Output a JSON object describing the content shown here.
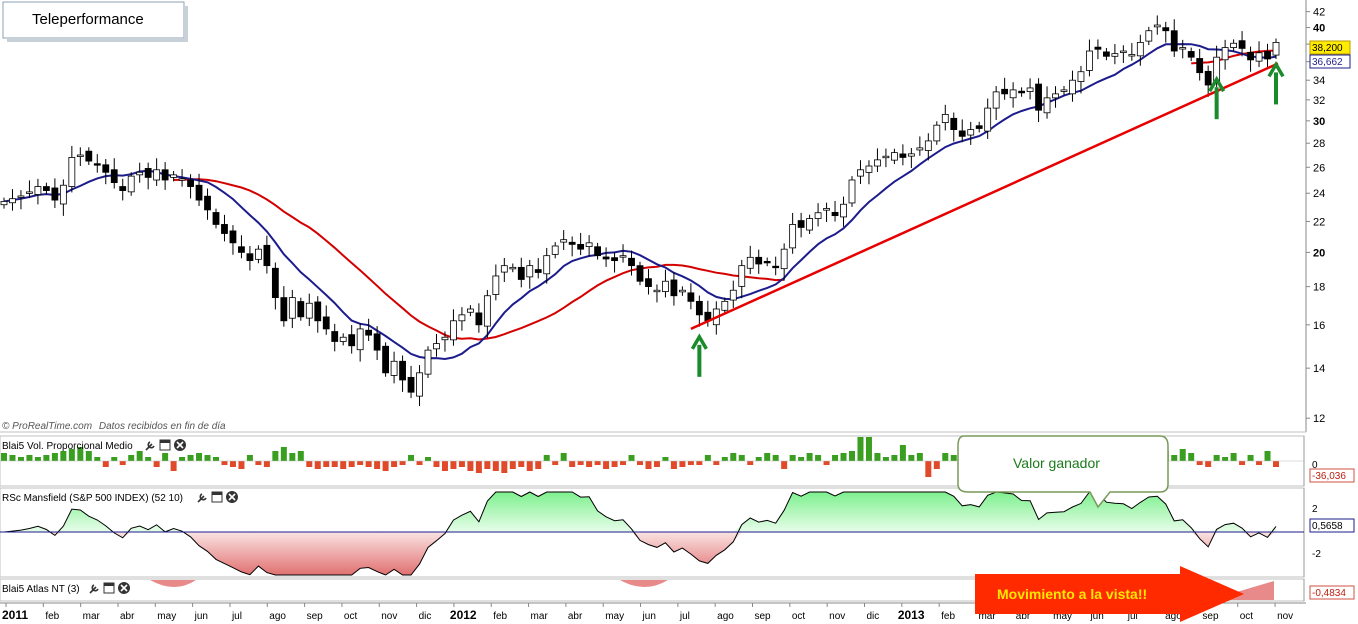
{
  "chart_data": {
    "type": "candlestick",
    "title": "Teleperformance",
    "source_label": "© ProRealTime.com",
    "source_note": "Datos recibidos en fin de día",
    "price_axis": {
      "ylim": [
        11.5,
        43
      ],
      "ticks": [
        12,
        14,
        16,
        18,
        20,
        22,
        24,
        26,
        28,
        30,
        32,
        34,
        36,
        38,
        40,
        42
      ],
      "scale": "log"
    },
    "last_price": "38,200",
    "ma_value": "36,662",
    "x_axis": {
      "months": [
        "2011",
        "feb",
        "mar",
        "abr",
        "may",
        "jun",
        "jul",
        "ago",
        "sep",
        "oct",
        "nov",
        "dic",
        "2012",
        "feb",
        "mar",
        "abr",
        "may",
        "jun",
        "jul",
        "ago",
        "sep",
        "oct",
        "nov",
        "dic",
        "2013",
        "feb",
        "mar",
        "abr",
        "may",
        "jun",
        "jul",
        "ago",
        "sep",
        "oct",
        "nov"
      ],
      "bold_labels": [
        "2011",
        "2012",
        "2013"
      ]
    },
    "weekly_close": [
      23.4,
      23.6,
      23.8,
      24.1,
      24.5,
      24.2,
      23.5,
      24.6,
      26.8,
      27.0,
      26.5,
      26.2,
      25.6,
      24.8,
      24.2,
      25.3,
      25.6,
      25.2,
      25.8,
      25.0,
      25.4,
      25.1,
      24.5,
      23.5,
      22.8,
      21.8,
      21.2,
      20.6,
      20.0,
      19.5,
      20.2,
      19.2,
      17.4,
      16.2,
      17.4,
      16.4,
      17.1,
      16.2,
      15.8,
      15.2,
      15.4,
      15.0,
      15.8,
      15.5,
      14.8,
      13.8,
      14.3,
      13.5,
      13.0,
      13.8,
      14.8,
      15.1,
      15.4,
      16.2,
      16.5,
      16.8,
      16.0,
      17.5,
      18.6,
      19.2,
      19.1,
      18.4,
      19.2,
      18.8,
      19.8,
      20.4,
      20.8,
      20.5,
      20.2,
      20.6,
      19.8,
      19.6,
      19.5,
      19.8,
      19.2,
      18.3,
      18.0,
      17.8,
      18.3,
      17.5,
      17.8,
      17.2,
      16.5,
      16.2,
      16.8,
      17.2,
      17.8,
      19.2,
      19.7,
      19.3,
      19.4,
      19.1,
      20.2,
      21.8,
      21.6,
      22.2,
      22.6,
      22.9,
      22.4,
      23.2,
      25.0,
      25.8,
      26.1,
      26.6,
      26.9,
      27.2,
      26.8,
      27.1,
      27.6,
      28.2,
      29.6,
      30.6,
      29.2,
      28.6,
      29.2,
      29.3,
      31.2,
      32.8,
      32.6,
      33.0,
      32.7,
      33.2,
      31.0,
      32.2,
      32.6,
      33.0,
      34.0,
      34.9,
      37.2,
      37.4,
      36.6,
      36.9,
      37.2,
      36.8,
      38.2,
      39.6,
      40.3,
      39.6,
      37.2,
      37.6,
      36.5,
      34.8,
      33.5,
      36.5,
      37.6,
      38.1,
      37.5,
      36.2,
      37.0,
      36.3,
      38.2
    ],
    "moving_average_short": {
      "name": "MA",
      "color": "#1c1c8c",
      "last": 36.662
    },
    "moving_average_long": {
      "name": "MA long",
      "color": "#d40000"
    },
    "trendline": {
      "from": [
        "2012-07",
        15.8
      ],
      "to": [
        "2013-10",
        35.8
      ],
      "color": "#e80000"
    },
    "arrows": [
      {
        "week": 82,
        "color": "#1a8a2a"
      },
      {
        "week": 143,
        "color": "#1a8a2a"
      },
      {
        "week": 150,
        "color": "#1a8a2a"
      }
    ],
    "panels": [
      {
        "name": "Blai5 Vol. Proporcional Medio",
        "value": "-36,036",
        "tick": "0",
        "bars": [
          4,
          3,
          2,
          3,
          2,
          3,
          4,
          5,
          6,
          7,
          5,
          2,
          -3,
          2,
          -2,
          3,
          5,
          2,
          -3,
          4,
          -5,
          2,
          3,
          4,
          3,
          2,
          -2,
          -3,
          -4,
          3,
          -2,
          -3,
          5,
          7,
          4,
          5,
          -3,
          -4,
          -3,
          -3,
          -4,
          -3,
          -2,
          -3,
          -4,
          -5,
          -3,
          -2,
          3,
          -2,
          2,
          -3,
          -5,
          -4,
          -3,
          -5,
          -6,
          -4,
          -5,
          -6,
          -4,
          -3,
          -5,
          -4,
          3,
          -2,
          4,
          -3,
          -2,
          -3,
          -2,
          -4,
          -3,
          -2,
          3,
          -2,
          -4,
          -3,
          2,
          -4,
          -3,
          -2,
          -2,
          3,
          -2,
          2,
          4,
          3,
          -2,
          2,
          4,
          3,
          -4,
          3,
          2,
          4,
          3,
          -2,
          3,
          4,
          5,
          12,
          12,
          4,
          2,
          3,
          8,
          3,
          4,
          -8,
          -4,
          4,
          3,
          4,
          5,
          7,
          3,
          4,
          3,
          5,
          7,
          -3,
          4,
          3,
          2,
          2,
          -2,
          3,
          4,
          4,
          9,
          10,
          5,
          6,
          5,
          7,
          12,
          5,
          3,
          6,
          4,
          -2,
          -3,
          3,
          2,
          4,
          -2,
          3,
          -2,
          5,
          -3,
          -4,
          -6,
          -3,
          -10
        ]
      },
      {
        "name": "RSc Mansfield (S&P 500 INDEX) (52 10)",
        "value": "0,5658",
        "ticks": [
          "2",
          "-2"
        ],
        "colors": {
          "positive": "#aef3b6",
          "negative": "#ef9a9a"
        }
      },
      {
        "name": "Blai5 Atlas NT (3)",
        "value": "-0,4834"
      }
    ]
  },
  "annotations": {
    "callout_text": "Valor ganador",
    "banner_text": "Movimiento a la vista!!"
  },
  "colors": {
    "green_bar": "#3a9e20",
    "red_bar": "#e04a2a",
    "banner": "#ff2a00",
    "banner_text": "#ffe800",
    "ma_blue": "#1c1c8c",
    "ma_red": "#d40000"
  }
}
